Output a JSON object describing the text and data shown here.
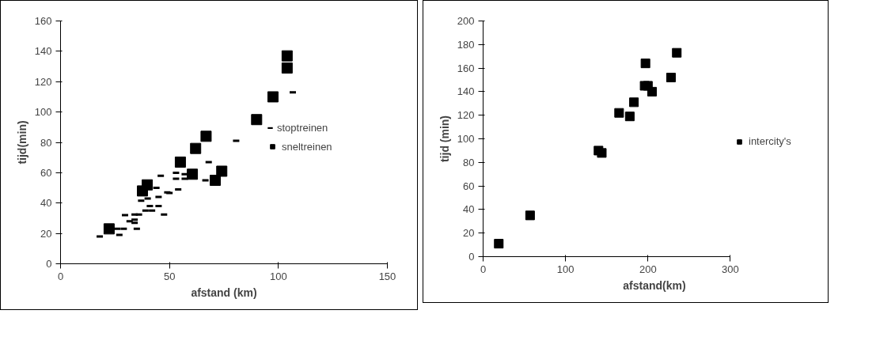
{
  "chart_data": [
    {
      "type": "scatter",
      "xlabel": "afstand (km)",
      "ylabel": "tijd(min)",
      "xlim": [
        0,
        150
      ],
      "xticks": [
        0,
        50,
        100,
        150
      ],
      "ylim": [
        0,
        160
      ],
      "yticks": [
        0,
        20,
        40,
        60,
        80,
        100,
        120,
        140,
        160
      ],
      "grid": false,
      "legend": "right",
      "series": [
        {
          "name": "stoptreinen",
          "color": "#000000",
          "x": [
            18,
            27,
            26,
            29,
            35,
            29.6,
            31.7,
            34,
            34,
            34,
            36,
            39,
            42,
            41,
            45,
            47.5,
            37,
            40,
            45,
            44,
            49,
            50,
            54,
            46,
            53,
            53,
            57,
            57,
            66.5,
            68,
            80.6,
            106.6
          ],
          "values": [
            18,
            19,
            23,
            23,
            23,
            32,
            28,
            29,
            27,
            32.5,
            32.5,
            35,
            35,
            38,
            38,
            32.5,
            41.5,
            43,
            44,
            50,
            47,
            46.7,
            49,
            58,
            60,
            56,
            59,
            56,
            55,
            67,
            81,
            113
          ]
        },
        {
          "name": "sneltreinen",
          "color": "#000000",
          "marker": "square",
          "x": [
            22.3,
            37.6,
            39.8,
            55,
            60.5,
            62,
            66.8,
            71,
            74,
            90,
            97.5,
            104,
            104
          ],
          "values": [
            23,
            48,
            52,
            67,
            59,
            76,
            84,
            55,
            61,
            95,
            110,
            137,
            129
          ]
        }
      ]
    },
    {
      "type": "scatter",
      "xlabel": "afstand(km)",
      "ylabel": "tijd (min)",
      "xlim": [
        0,
        300
      ],
      "xticks": [
        0,
        100,
        200,
        300
      ],
      "ylim": [
        0,
        200
      ],
      "yticks": [
        0,
        20,
        40,
        60,
        80,
        100,
        120,
        140,
        160,
        180,
        200
      ],
      "grid": false,
      "legend": "right",
      "series": [
        {
          "name": "intercity's",
          "color": "#000000",
          "marker": "square",
          "x": [
            19,
            57,
            140,
            144,
            165,
            178,
            183,
            196,
            200,
            205,
            197,
            228,
            235
          ],
          "values": [
            11,
            35,
            90,
            88,
            122,
            119,
            131,
            145,
            145,
            140,
            164,
            152,
            173
          ]
        }
      ]
    }
  ]
}
